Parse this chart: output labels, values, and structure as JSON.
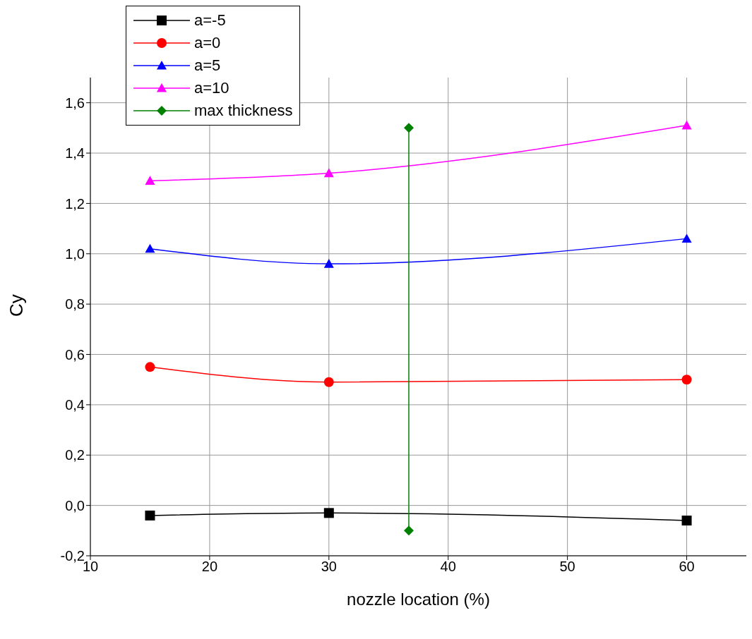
{
  "chart_data": {
    "type": "line",
    "xlabel": "nozzle location (%)",
    "ylabel": "Cy",
    "xlim": [
      10,
      65
    ],
    "xticks": [
      10,
      20,
      30,
      40,
      50,
      60
    ],
    "ylim": [
      -0.2,
      1.7
    ],
    "yticks": [
      {
        "value": -0.2,
        "label": "-0,2"
      },
      {
        "value": 0,
        "label": "0,0"
      },
      {
        "value": 0.2,
        "label": "0,2"
      },
      {
        "value": 0.4,
        "label": "0,4"
      },
      {
        "value": 0.6,
        "label": "0,6"
      },
      {
        "value": 0.8,
        "label": "0,8"
      },
      {
        "value": 1.0,
        "label": "1,0"
      },
      {
        "value": 1.2,
        "label": "1,2"
      },
      {
        "value": 1.4,
        "label": "1,4"
      },
      {
        "value": 1.6,
        "label": "1,6"
      }
    ],
    "grid": true,
    "legend": "top left",
    "line_style": "solid",
    "series": [
      {
        "name": "a=-5",
        "color": "#000000",
        "marker": "square",
        "x": [
          15,
          30,
          60
        ],
        "values": [
          -0.04,
          -0.03,
          -0.06
        ]
      },
      {
        "name": "a=0",
        "color": "#ff0000",
        "marker": "circle",
        "x": [
          15,
          30,
          60
        ],
        "values": [
          0.55,
          0.49,
          0.5
        ]
      },
      {
        "name": "a=5",
        "color": "#0000ff",
        "marker": "triangle",
        "x": [
          15,
          30,
          60
        ],
        "values": [
          1.02,
          0.96,
          1.06
        ]
      },
      {
        "name": "a=10",
        "color": "#ff00ff",
        "marker": "triangle",
        "x": [
          15,
          30,
          60
        ],
        "values": [
          1.29,
          1.32,
          1.51
        ]
      },
      {
        "name": "max thickness",
        "color": "#008000",
        "marker": "diamond",
        "x": [
          36.7,
          36.7
        ],
        "values": [
          1.5,
          -0.1
        ]
      }
    ]
  }
}
